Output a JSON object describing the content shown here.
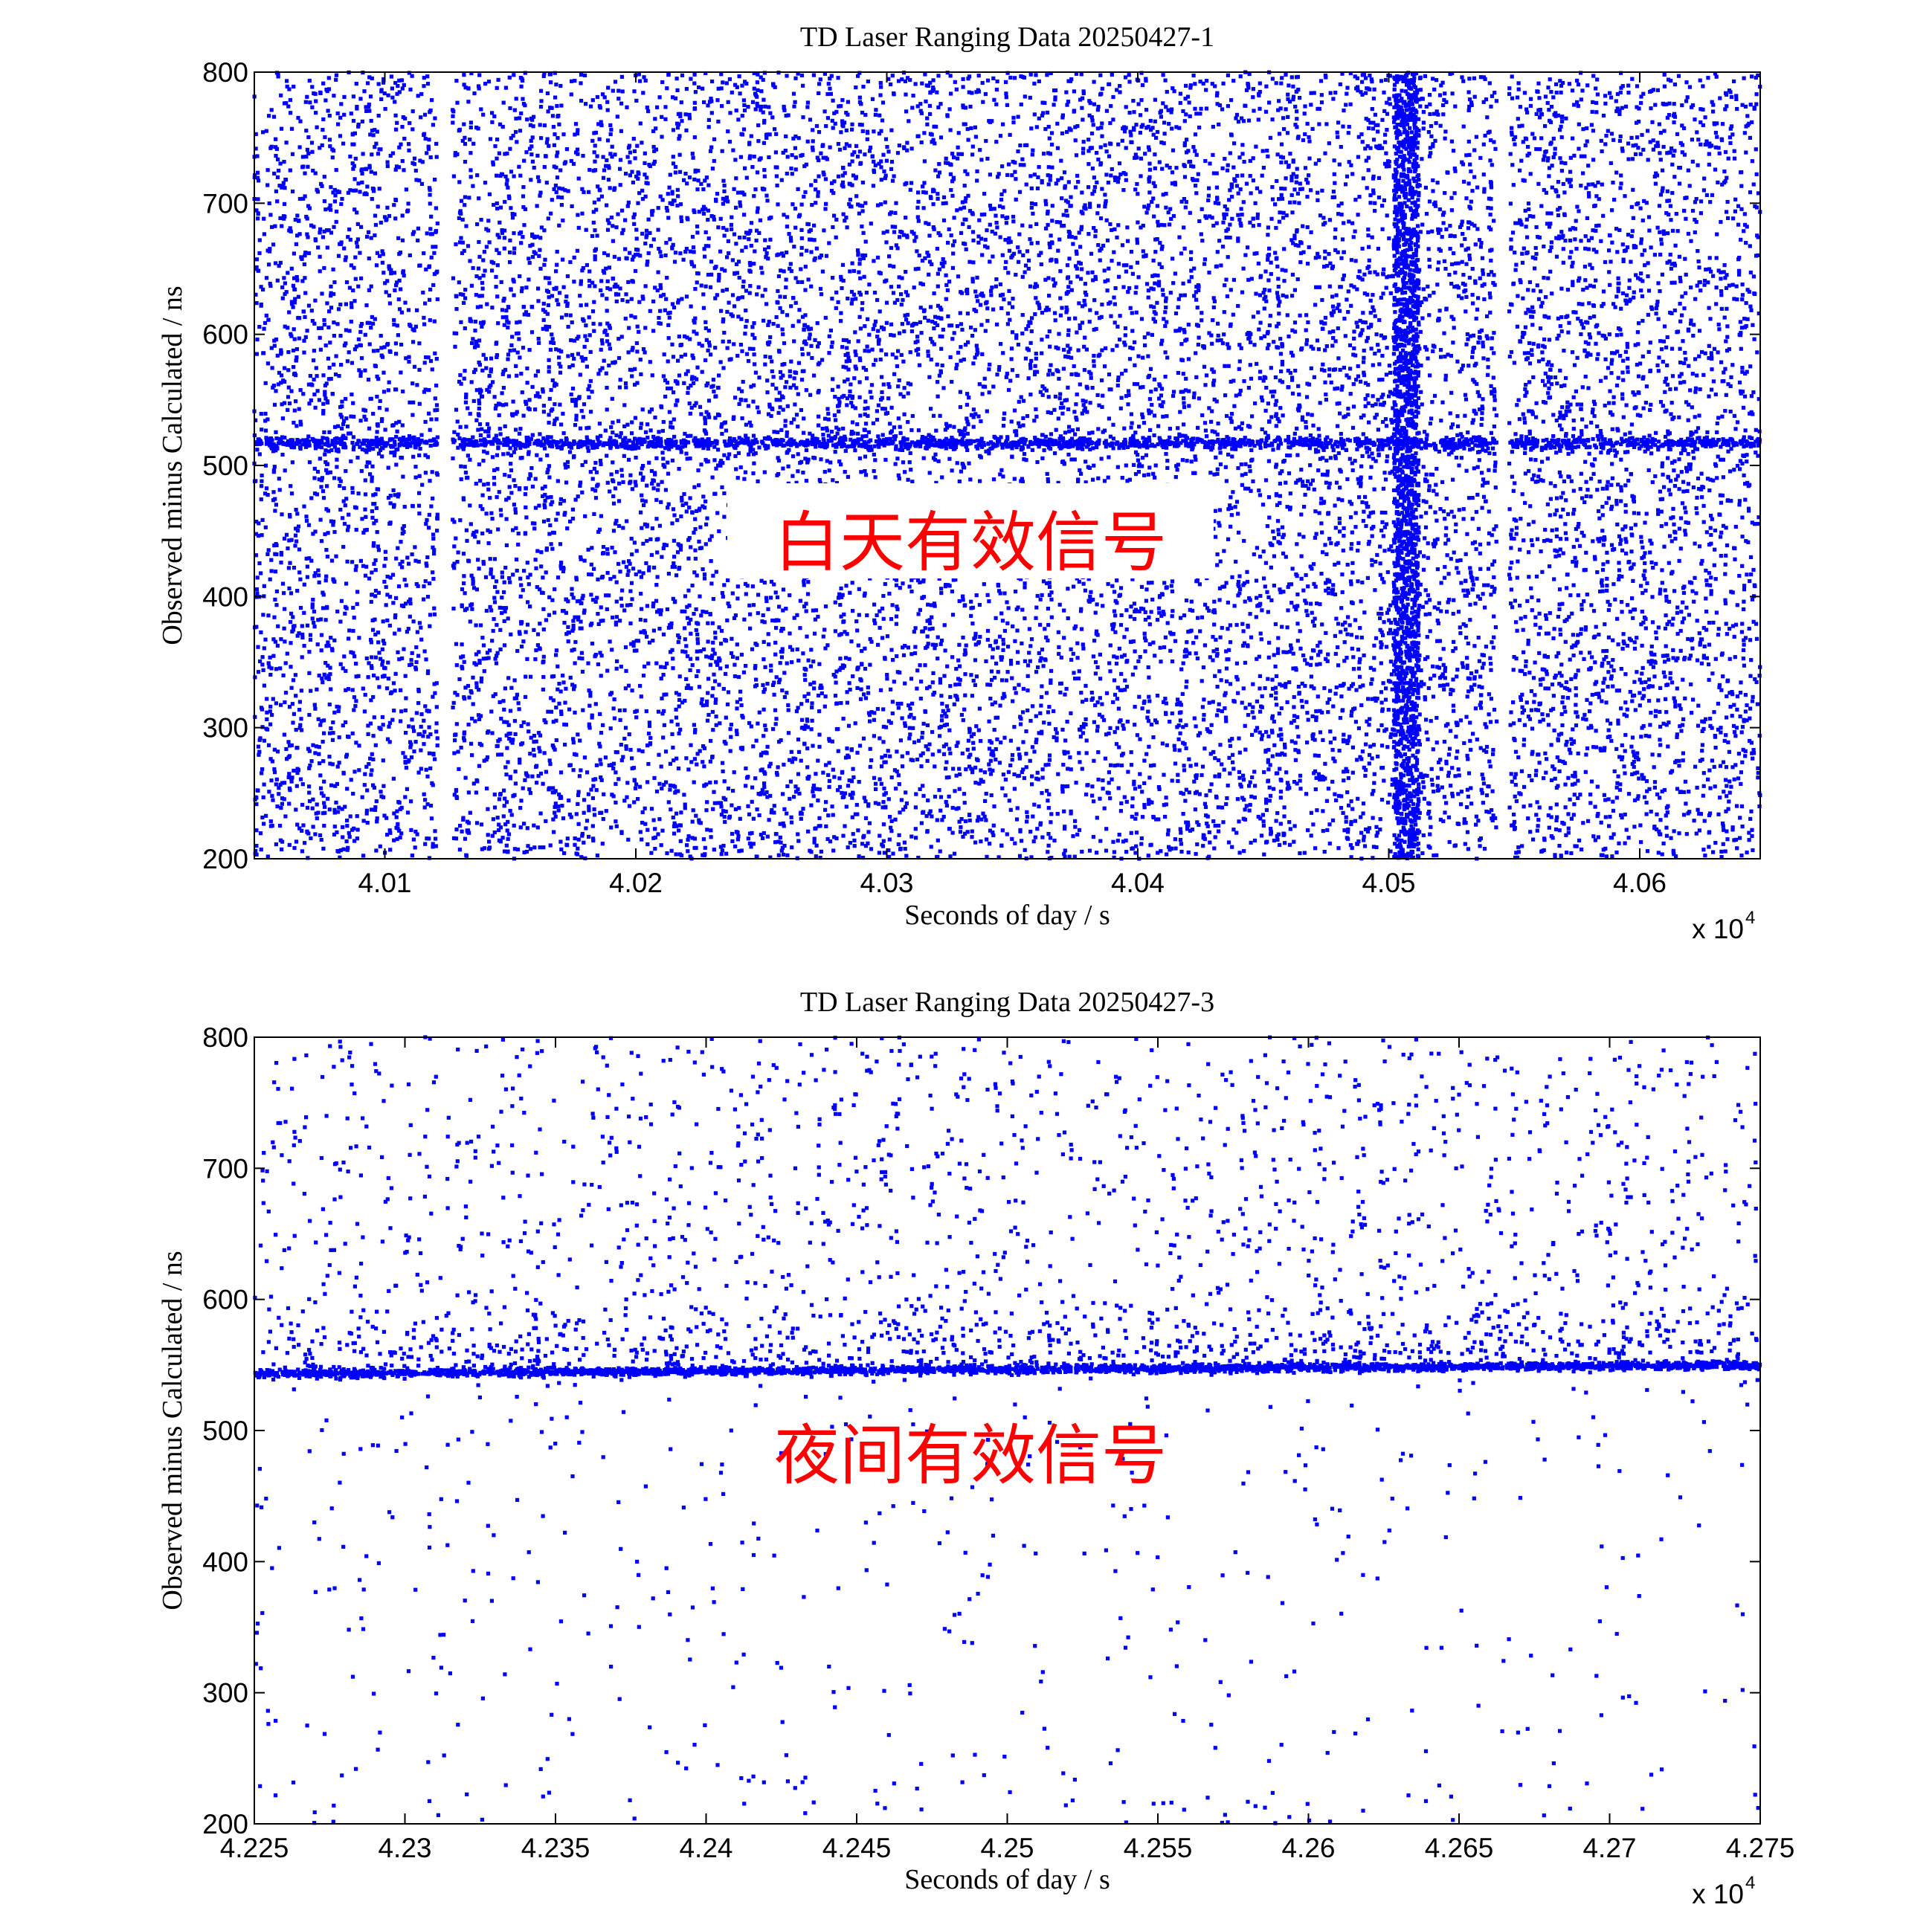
{
  "chart_data": [
    {
      "type": "scatter",
      "title": "TD Laser Ranging Data 20250427-1",
      "xlabel": "Seconds of day / s",
      "ylabel": "Observed minus Calculated / ns",
      "x_multiplier": "x 10",
      "x_multiplier_exponent": "4",
      "xlim": [
        4.0048,
        4.0648
      ],
      "ylim": [
        200,
        800
      ],
      "xticks": [
        4.01,
        4.02,
        4.03,
        4.04,
        4.05,
        4.06
      ],
      "xtick_labels": [
        "4.01",
        "4.02",
        "4.03",
        "4.04",
        "4.05",
        "4.06"
      ],
      "yticks": [
        200,
        300,
        400,
        500,
        600,
        700,
        800
      ],
      "ytick_labels": [
        "200",
        "300",
        "400",
        "500",
        "600",
        "700",
        "800"
      ],
      "grid": false,
      "marker_color": "#0000ff",
      "annotation": "白天有效信号",
      "annotation_color": "#ff0000",
      "signal_track": {
        "x": [
          4.0048,
          4.0648
        ],
        "y": [
          517,
          517
        ]
      },
      "data_gaps_x": [
        [
          4.0121,
          4.0127
        ],
        [
          4.0543,
          4.0548
        ]
      ],
      "dense_band_x": [
        4.0502,
        4.0512
      ]
    },
    {
      "type": "scatter",
      "title": "TD Laser Ranging Data 20250427-3",
      "xlabel": "Seconds of day / s",
      "ylabel": "Observed minus Calculated / ns",
      "x_multiplier": "x 10",
      "x_multiplier_exponent": "4",
      "xlim": [
        4.225,
        4.275
      ],
      "ylim": [
        200,
        800
      ],
      "xticks": [
        4.225,
        4.23,
        4.235,
        4.24,
        4.245,
        4.25,
        4.255,
        4.26,
        4.265,
        4.27,
        4.275
      ],
      "xtick_labels": [
        "4.225",
        "4.23",
        "4.235",
        "4.24",
        "4.245",
        "4.25",
        "4.255",
        "4.26",
        "4.265",
        "4.27",
        "4.275"
      ],
      "yticks": [
        200,
        300,
        400,
        500,
        600,
        700,
        800
      ],
      "ytick_labels": [
        "200",
        "300",
        "400",
        "500",
        "600",
        "700",
        "800"
      ],
      "grid": false,
      "marker_color": "#0000ff",
      "annotation": "夜间有效信号",
      "annotation_color": "#ff0000",
      "signal_track": {
        "x": [
          4.225,
          4.275
        ],
        "y": [
          543,
          550
        ]
      }
    }
  ]
}
